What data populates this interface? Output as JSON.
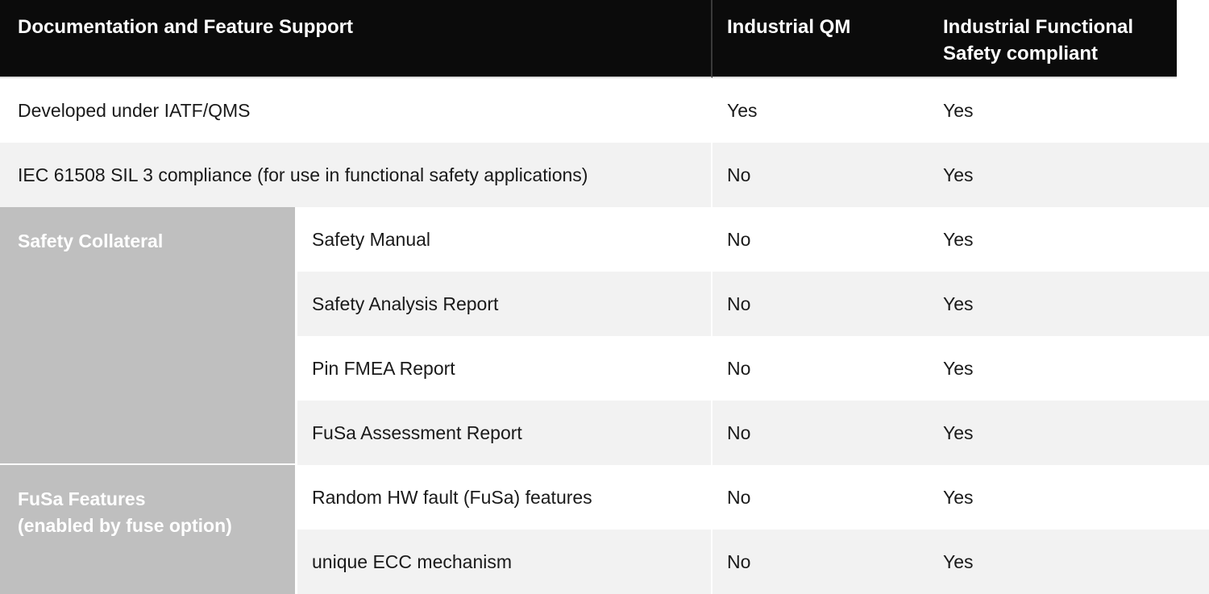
{
  "header": {
    "feature_col": "Documentation and Feature Support",
    "qm_col": "Industrial QM",
    "fusa_col": "Industrial Functional Safety compliant"
  },
  "colors": {
    "header_bg": "#0b0b0b",
    "header_divider": "#3a3a3a",
    "sidebar_bg": "#bfbfbf",
    "zebra_row_bg": "#f2f2f2",
    "body_text": "#1a1a1a",
    "header_text": "#ffffff"
  },
  "rows_top": [
    {
      "label": "Developed under IATF/QMS",
      "qm": "Yes",
      "fusa": "Yes"
    },
    {
      "label": "IEC 61508 SIL 3 compliance (for use in functional safety applications)",
      "qm": "No",
      "fusa": "Yes"
    }
  ],
  "sections": [
    {
      "title": "Safety Collateral",
      "rows": [
        {
          "label": "Safety Manual",
          "qm": "No",
          "fusa": "Yes"
        },
        {
          "label": "Safety Analysis Report",
          "qm": "No",
          "fusa": "Yes"
        },
        {
          "label": "Pin FMEA Report",
          "qm": "No",
          "fusa": "Yes"
        },
        {
          "label": "FuSa Assessment Report",
          "qm": "No",
          "fusa": "Yes"
        }
      ]
    },
    {
      "title": "FuSa Features\n(enabled by fuse option)",
      "rows": [
        {
          "label": "Random HW fault (FuSa) features",
          "qm": "No",
          "fusa": "Yes"
        },
        {
          "label": "unique ECC mechanism",
          "qm": "No",
          "fusa": "Yes"
        }
      ]
    }
  ]
}
